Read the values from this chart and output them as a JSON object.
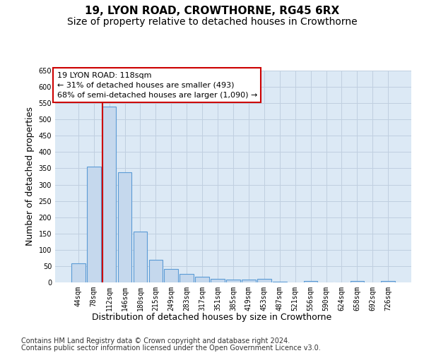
{
  "title1": "19, LYON ROAD, CROWTHORNE, RG45 6RX",
  "title2": "Size of property relative to detached houses in Crowthorne",
  "xlabel": "Distribution of detached houses by size in Crowthorne",
  "ylabel": "Number of detached properties",
  "categories": [
    "44sqm",
    "78sqm",
    "112sqm",
    "146sqm",
    "180sqm",
    "215sqm",
    "249sqm",
    "283sqm",
    "317sqm",
    "351sqm",
    "385sqm",
    "419sqm",
    "453sqm",
    "487sqm",
    "521sqm",
    "556sqm",
    "590sqm",
    "624sqm",
    "658sqm",
    "692sqm",
    "726sqm"
  ],
  "values": [
    58,
    355,
    540,
    338,
    157,
    70,
    42,
    25,
    17,
    10,
    8,
    8,
    10,
    3,
    0,
    5,
    0,
    0,
    5,
    0,
    5
  ],
  "bar_color": "#c5d8ed",
  "bar_edge_color": "#5b9bd5",
  "highlight_bar_index": 2,
  "highlight_line_color": "#cc0000",
  "annotation_line1": "19 LYON ROAD: 118sqm",
  "annotation_line2": "← 31% of detached houses are smaller (493)",
  "annotation_line3": "68% of semi-detached houses are larger (1,090) →",
  "annotation_box_color": "#ffffff",
  "annotation_box_edge_color": "#cc0000",
  "annotation_fontsize": 8,
  "grid_color": "#c0cfe0",
  "background_color": "#dce9f5",
  "ylim_max": 650,
  "yticks": [
    0,
    50,
    100,
    150,
    200,
    250,
    300,
    350,
    400,
    450,
    500,
    550,
    600,
    650
  ],
  "footnote1": "Contains HM Land Registry data © Crown copyright and database right 2024.",
  "footnote2": "Contains public sector information licensed under the Open Government Licence v3.0.",
  "title1_fontsize": 11,
  "title2_fontsize": 10,
  "xlabel_fontsize": 9,
  "ylabel_fontsize": 9,
  "tick_fontsize": 7,
  "footnote_fontsize": 7
}
